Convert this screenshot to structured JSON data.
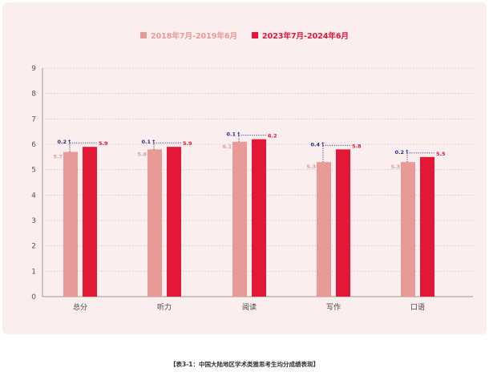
{
  "chart_data": {
    "type": "bar",
    "categories": [
      "总分",
      "听力",
      "阅读",
      "写作",
      "口语"
    ],
    "series": [
      {
        "name": "2018年7月-2019年6月",
        "values": [
          5.7,
          5.8,
          6.1,
          5.3,
          5.3
        ],
        "color": "#e89a97"
      },
      {
        "name": "2023年7月-2024年6月",
        "values": [
          5.9,
          5.9,
          6.2,
          5.8,
          5.5
        ],
        "color": "#e31837"
      }
    ],
    "differences": [
      "0.2",
      "0.1",
      "0.1",
      "0.4",
      "0.2"
    ],
    "ylim": [
      0,
      9
    ],
    "yticks": [
      "0",
      "1",
      "2",
      "3",
      "4",
      "5",
      "6",
      "7",
      "8",
      "9"
    ],
    "grid": "horizontal dotted",
    "legend": "top-center"
  },
  "caption": "【表3-1：中国大陆地区学术类雅思考生均分成绩表现】",
  "colors": {
    "panel": "#fbeeee",
    "axis": "#9a9a9a",
    "grid": "#c9c9c9",
    "annotation": "#2b2d7a"
  }
}
